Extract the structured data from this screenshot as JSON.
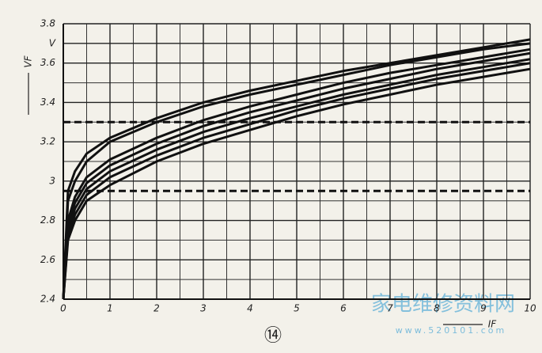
{
  "chart_data": {
    "type": "line",
    "y_label": "VF",
    "x_label": "IF",
    "footer": "⑭",
    "watermark": [
      "家电维修资料网",
      "www.520101.com"
    ],
    "x": [
      0,
      0.1,
      0.25,
      0.5,
      1,
      2,
      3,
      4,
      5,
      6,
      7,
      8,
      9,
      10
    ],
    "series": [
      {
        "color": "#111111",
        "values": [
          2.4,
          2.95,
          3.05,
          3.14,
          3.22,
          3.32,
          3.4,
          3.46,
          3.51,
          3.56,
          3.6,
          3.64,
          3.68,
          3.72
        ]
      },
      {
        "color": "#111111",
        "values": [
          2.4,
          2.9,
          3.0,
          3.1,
          3.2,
          3.3,
          3.38,
          3.44,
          3.49,
          3.54,
          3.59,
          3.63,
          3.67,
          3.7
        ]
      },
      {
        "color": "#111111",
        "values": [
          2.4,
          2.8,
          2.92,
          3.02,
          3.11,
          3.22,
          3.31,
          3.38,
          3.44,
          3.5,
          3.55,
          3.59,
          3.63,
          3.67
        ]
      },
      {
        "color": "#111111",
        "values": [
          2.4,
          2.78,
          2.89,
          2.99,
          3.08,
          3.19,
          3.28,
          3.35,
          3.41,
          3.47,
          3.52,
          3.57,
          3.61,
          3.65
        ]
      },
      {
        "color": "#111111",
        "values": [
          2.4,
          2.75,
          2.86,
          2.96,
          3.05,
          3.16,
          3.25,
          3.32,
          3.38,
          3.44,
          3.49,
          3.54,
          3.58,
          3.62
        ]
      },
      {
        "color": "#111111",
        "values": [
          2.4,
          2.72,
          2.83,
          2.93,
          3.02,
          3.13,
          3.22,
          3.29,
          3.36,
          3.42,
          3.47,
          3.52,
          3.56,
          3.6
        ]
      },
      {
        "color": "#111111",
        "values": [
          2.4,
          2.7,
          2.8,
          2.9,
          2.98,
          3.1,
          3.19,
          3.26,
          3.33,
          3.39,
          3.44,
          3.49,
          3.53,
          3.57
        ]
      }
    ],
    "xlim": [
      0,
      10
    ],
    "xticks": [
      0,
      1,
      2,
      3,
      4,
      5,
      6,
      7,
      8,
      9,
      10
    ],
    "x_minor_ticks": [
      0.5,
      1.5,
      2.5,
      3.5,
      4.5,
      5.5,
      6.5,
      7.5,
      8.5,
      9.5
    ],
    "ylim": [
      2.4,
      3.8
    ],
    "yticks": [
      2.4,
      2.6,
      2.8,
      3,
      3.2,
      3.4,
      3.6,
      {
        "value": 3.7,
        "label": "V"
      },
      3.8
    ],
    "y_minor_ticks": [
      2.5,
      2.7,
      2.9,
      3.1,
      3.3,
      3.5
    ],
    "reference_lines": [
      3.3,
      2.95
    ],
    "grid": true
  }
}
